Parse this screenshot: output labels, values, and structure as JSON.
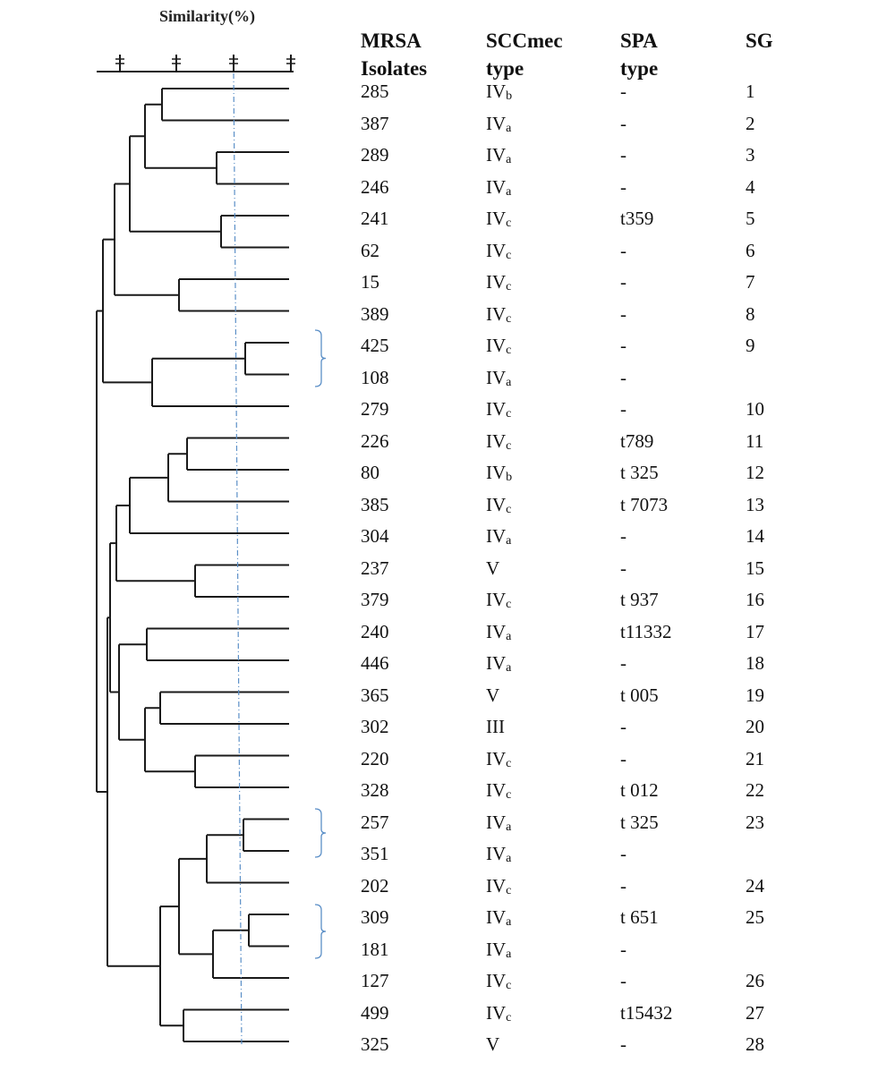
{
  "header": {
    "similarity_title": "Similarity(%)",
    "isolates_line1": "MRSA",
    "isolates_line2": "Isolates",
    "scc_line1": "SCCmec",
    "scc_line2": "type",
    "spa_line1": "SPA",
    "spa_line2": "type",
    "sg": "SG"
  },
  "colors": {
    "tree": "#1a1a1a",
    "cutoff_line": "#5b8fc7",
    "brace": "#5b8fc7"
  },
  "rows": [
    {
      "isolate": "285",
      "scc": "IV",
      "scc_sub": "b",
      "spa": "-",
      "sg": "1"
    },
    {
      "isolate": "387",
      "scc": "IV",
      "scc_sub": "a",
      "spa": "-",
      "sg": "2"
    },
    {
      "isolate": "289",
      "scc": "IV",
      "scc_sub": "a",
      "spa": "-",
      "sg": "3"
    },
    {
      "isolate": "246",
      "scc": "IV",
      "scc_sub": "a",
      "spa": "-",
      "sg": "4"
    },
    {
      "isolate": "241",
      "scc": "IV",
      "scc_sub": "c",
      "spa": "t359",
      "sg": "5"
    },
    {
      "isolate": "62",
      "scc": "IV",
      "scc_sub": "c",
      "spa": "-",
      "sg": "6"
    },
    {
      "isolate": "15",
      "scc": "IV",
      "scc_sub": "c",
      "spa": "-",
      "sg": "7"
    },
    {
      "isolate": "389",
      "scc": "IV",
      "scc_sub": "c",
      "spa": "-",
      "sg": "8"
    },
    {
      "isolate": "425",
      "scc": "IV",
      "scc_sub": "c",
      "spa": "-",
      "sg": "9"
    },
    {
      "isolate": "108",
      "scc": "IV",
      "scc_sub": "a",
      "spa": "-",
      "sg": ""
    },
    {
      "isolate": "279",
      "scc": "IV",
      "scc_sub": "c",
      "spa": "-",
      "sg": "10"
    },
    {
      "isolate": "226",
      "scc": "IV",
      "scc_sub": "c",
      "spa": "t789",
      "sg": "11"
    },
    {
      "isolate": "80",
      "scc": "IV",
      "scc_sub": "b",
      "spa": "t 325",
      "sg": "12"
    },
    {
      "isolate": "385",
      "scc": "IV",
      "scc_sub": "c",
      "spa": "t 7073",
      "sg": "13"
    },
    {
      "isolate": "304",
      "scc": "IV",
      "scc_sub": "a",
      "spa": "-",
      "sg": "14"
    },
    {
      "isolate": "237",
      "scc": "V",
      "scc_sub": "",
      "spa": "-",
      "sg": "15"
    },
    {
      "isolate": "379",
      "scc": "IV",
      "scc_sub": "c",
      "spa": "t 937",
      "sg": "16"
    },
    {
      "isolate": "240",
      "scc": "IV",
      "scc_sub": "a",
      "spa": "t11332",
      "sg": "17"
    },
    {
      "isolate": "446",
      "scc": "IV",
      "scc_sub": "a",
      "spa": "-",
      "sg": "18"
    },
    {
      "isolate": "365",
      "scc": "V",
      "scc_sub": "",
      "spa": "t 005",
      "sg": "19"
    },
    {
      "isolate": "302",
      "scc": "III",
      "scc_sub": "",
      "spa": "-",
      "sg": "20"
    },
    {
      "isolate": "220",
      "scc": "IV",
      "scc_sub": "c",
      "spa": "-",
      "sg": "21"
    },
    {
      "isolate": "328",
      "scc": "IV",
      "scc_sub": "c",
      "spa": "t 012",
      "sg": "22"
    },
    {
      "isolate": "257",
      "scc": "IV",
      "scc_sub": "a",
      "spa": "t 325",
      "sg": "23"
    },
    {
      "isolate": "351",
      "scc": "IV",
      "scc_sub": "a",
      "spa": "-",
      "sg": ""
    },
    {
      "isolate": "202",
      "scc": "IV",
      "scc_sub": "c",
      "spa": "-",
      "sg": "24"
    },
    {
      "isolate": "309",
      "scc": "IV",
      "scc_sub": "a",
      "spa": "t 651",
      "sg": "25"
    },
    {
      "isolate": "181",
      "scc": "IV",
      "scc_sub": "a",
      "spa": "-",
      "sg": ""
    },
    {
      "isolate": "127",
      "scc": "IV",
      "scc_sub": "c",
      "spa": "-",
      "sg": "26"
    },
    {
      "isolate": "499",
      "scc": "IV",
      "scc_sub": "c",
      "spa": "t15432",
      "sg": "27"
    },
    {
      "isolate": "325",
      "scc": "V",
      "scc_sub": "",
      "spa": "-",
      "sg": "28"
    }
  ]
}
